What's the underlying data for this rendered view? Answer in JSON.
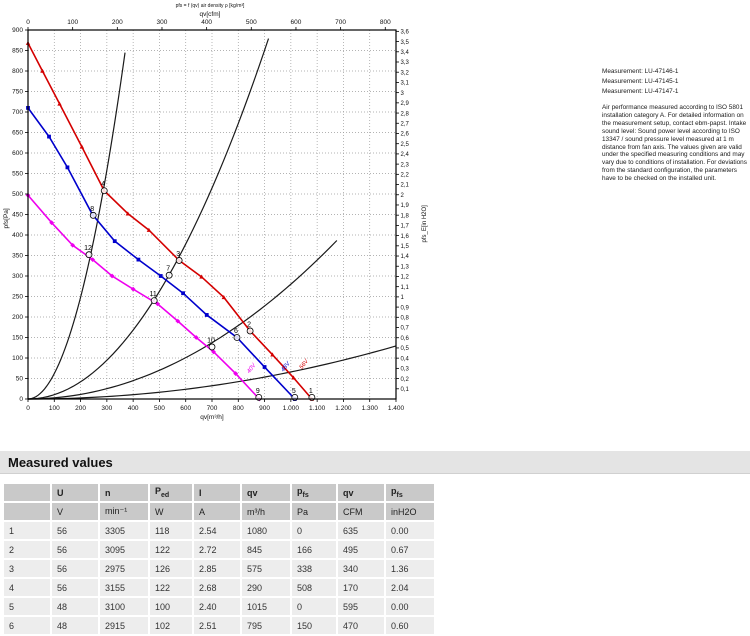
{
  "chart_data": {
    "type": "line",
    "title": "pfs = f (qv) air density ρ [kg/m³]",
    "grid": true,
    "legend_position": "on-curve",
    "axes": {
      "bottom": {
        "label": "qv[m³/h]",
        "min": 0,
        "max": 1400,
        "step": 100
      },
      "top": {
        "label": "qv[cfm]",
        "min": 0,
        "max": 800,
        "step": 100,
        "m3h_per_cfm": 1.699
      },
      "left": {
        "label": "pfs[Pa]",
        "min": 0,
        "max": 900,
        "step": 50
      },
      "right": {
        "label": "pfs_E[in H2O]",
        "min": 0.1,
        "max": 3.6,
        "step": 0.1,
        "pa_per_inh2o": 249.08
      }
    },
    "series": [
      {
        "name": "56V",
        "color": "#d40000",
        "marker": "triangle",
        "points": [
          [
            0,
            868
          ],
          [
            55,
            800
          ],
          [
            120,
            720
          ],
          [
            205,
            615
          ],
          [
            290,
            508
          ],
          [
            380,
            452
          ],
          [
            460,
            412
          ],
          [
            575,
            338
          ],
          [
            660,
            298
          ],
          [
            745,
            248
          ],
          [
            845,
            166
          ],
          [
            930,
            108
          ],
          [
            1010,
            52
          ],
          [
            1080,
            0
          ]
        ],
        "end_label": {
          "qv": 1042,
          "pfs": 72
        }
      },
      {
        "name": "48V",
        "color": "#0000cc",
        "marker": "square",
        "points": [
          [
            0,
            710
          ],
          [
            80,
            640
          ],
          [
            150,
            565
          ],
          [
            245,
            450
          ],
          [
            330,
            385
          ],
          [
            420,
            340
          ],
          [
            505,
            300
          ],
          [
            590,
            258
          ],
          [
            680,
            205
          ],
          [
            795,
            150
          ],
          [
            900,
            78
          ],
          [
            1015,
            0
          ]
        ],
        "end_label": {
          "qv": 972,
          "pfs": 66
        }
      },
      {
        "name": "40V",
        "color": "#ee00ee",
        "marker": "diamond",
        "points": [
          [
            0,
            497
          ],
          [
            90,
            430
          ],
          [
            170,
            375
          ],
          [
            246,
            340
          ],
          [
            320,
            300
          ],
          [
            400,
            268
          ],
          [
            493,
            232
          ],
          [
            570,
            190
          ],
          [
            640,
            150
          ],
          [
            706,
            115
          ],
          [
            790,
            62
          ],
          [
            880,
            0
          ]
        ],
        "end_label": {
          "qv": 842,
          "pfs": 62
        }
      }
    ],
    "throttle_curves": [
      {
        "k": 0.0062,
        "qmax": 377
      },
      {
        "k": 0.00105,
        "qmax": 915
      },
      {
        "k": 0.00028,
        "qmax": 1175
      },
      {
        "k": 6.6e-05,
        "qmax": 1400
      }
    ],
    "operating_points": [
      {
        "label": "1",
        "qv": 1080,
        "pfs": 4
      },
      {
        "label": "2",
        "qv": 845,
        "pfs": 166
      },
      {
        "label": "3",
        "qv": 575,
        "pfs": 338
      },
      {
        "label": "4",
        "qv": 290,
        "pfs": 508
      },
      {
        "label": "5",
        "qv": 1015,
        "pfs": 4
      },
      {
        "label": "6",
        "qv": 795,
        "pfs": 150
      },
      {
        "label": "7",
        "qv": 537,
        "pfs": 302
      },
      {
        "label": "8",
        "qv": 248,
        "pfs": 448
      },
      {
        "label": "9",
        "qv": 878,
        "pfs": 4
      },
      {
        "label": "10",
        "qv": 700,
        "pfs": 127
      },
      {
        "label": "11",
        "qv": 480,
        "pfs": 240
      },
      {
        "label": "12",
        "qv": 232,
        "pfs": 352
      }
    ],
    "colors": {
      "grid": "#9a9a9a",
      "frame": "#000000",
      "throttle": "#1a1a1a"
    }
  },
  "side_panel": {
    "measurements": [
      "Measurement: LU-47146-1",
      "Measurement: LU-47145-1",
      "Measurement: LU-47147-1"
    ],
    "note": "Air performance measured according to ISO 5801 installation category A. For detailed information on the measurement setup, contact ebm-papst. Intake sound level: Sound power level according to ISO 13347 / sound pressure level measured at 1 m distance from fan axis. The values given are valid under the specified measuring conditions and may vary due to conditions of installation. For deviations from the standard configuration, the parameters have to be checked on the installed unit."
  },
  "table": {
    "title": "Measured values",
    "columns": [
      {
        "label": "",
        "sub": "",
        "unit": ""
      },
      {
        "label": "U",
        "sub": "",
        "unit": "V"
      },
      {
        "label": "n",
        "sub": "",
        "unit": "min⁻¹"
      },
      {
        "label": "P",
        "sub": "ed",
        "unit": "W"
      },
      {
        "label": "I",
        "sub": "",
        "unit": "A"
      },
      {
        "label": "qv",
        "sub": "",
        "unit": "m³/h"
      },
      {
        "label": "p",
        "sub": "fs",
        "unit": "Pa"
      },
      {
        "label": "qv",
        "sub": "",
        "unit": "CFM"
      },
      {
        "label": "p",
        "sub": "fs",
        "unit": "inH2O"
      }
    ],
    "rows": [
      [
        "1",
        "56",
        "3305",
        "118",
        "2.54",
        "1080",
        "0",
        "635",
        "0.00"
      ],
      [
        "2",
        "56",
        "3095",
        "122",
        "2.72",
        "845",
        "166",
        "495",
        "0.67"
      ],
      [
        "3",
        "56",
        "2975",
        "126",
        "2.85",
        "575",
        "338",
        "340",
        "1.36"
      ],
      [
        "4",
        "56",
        "3155",
        "122",
        "2.68",
        "290",
        "508",
        "170",
        "2.04"
      ],
      [
        "5",
        "48",
        "3100",
        "100",
        "2.40",
        "1015",
        "0",
        "595",
        "0.00"
      ],
      [
        "6",
        "48",
        "2915",
        "102",
        "2.51",
        "795",
        "150",
        "470",
        "0.60"
      ]
    ]
  }
}
